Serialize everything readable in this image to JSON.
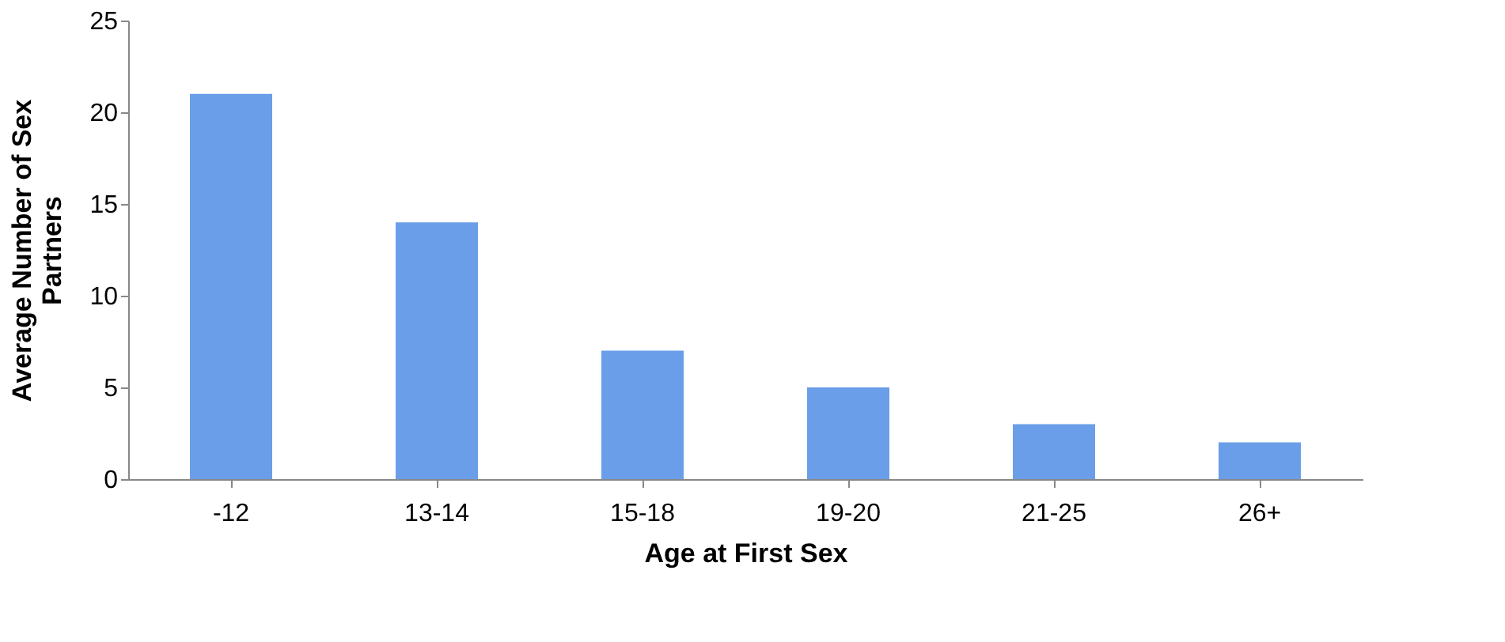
{
  "chart_data": {
    "type": "bar",
    "xlabel": "Age at First Sex",
    "ylabel": "Average Number of Sex Partners",
    "categories": [
      "-12",
      "13-14",
      "15-18",
      "19-20",
      "21-25",
      "26+"
    ],
    "values": [
      21,
      14,
      7,
      5,
      3,
      2
    ],
    "color": "#6a9ee8",
    "ylim": [
      0,
      25
    ],
    "yticks": [
      0,
      5,
      10,
      15,
      20,
      25
    ],
    "grid": false
  }
}
